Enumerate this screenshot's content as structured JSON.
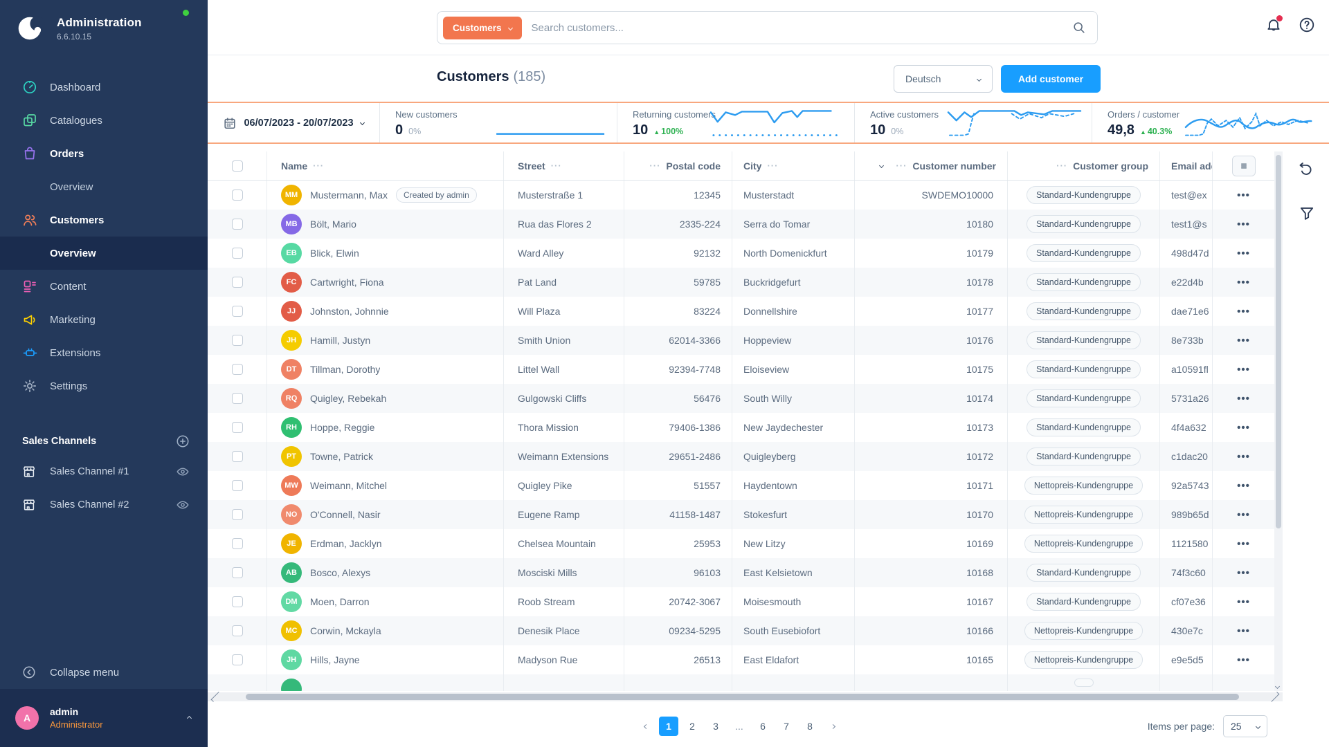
{
  "app": {
    "name": "Administration",
    "version": "6.6.10.15"
  },
  "sidebar": {
    "items": [
      {
        "label": "Dashboard",
        "icon": "dashboard-icon",
        "color": "#2dd5c4",
        "bold": false,
        "sub": []
      },
      {
        "label": "Catalogues",
        "icon": "catalogues-icon",
        "color": "#57d9a3",
        "bold": false,
        "sub": []
      },
      {
        "label": "Orders",
        "icon": "orders-icon",
        "color": "#9873f0",
        "bold": true,
        "sub": [
          {
            "label": "Overview",
            "active": false
          }
        ]
      },
      {
        "label": "Customers",
        "icon": "customers-icon",
        "color": "#f37f58",
        "bold": true,
        "sub": [
          {
            "label": "Overview",
            "active": true
          }
        ]
      },
      {
        "label": "Content",
        "icon": "content-icon",
        "color": "#ec5fb4",
        "bold": false,
        "sub": []
      },
      {
        "label": "Marketing",
        "icon": "marketing-icon",
        "color": "#ffd200",
        "bold": false,
        "sub": []
      },
      {
        "label": "Extensions",
        "icon": "extensions-icon",
        "color": "#1b9eff",
        "bold": false,
        "sub": []
      },
      {
        "label": "Settings",
        "icon": "settings-icon",
        "color": "#a4b2c5",
        "bold": false,
        "sub": []
      }
    ],
    "sales_channels": {
      "title": "Sales Channels",
      "channels": [
        "Sales Channel #1",
        "Sales Channel #2"
      ]
    },
    "collapse_label": "Collapse menu",
    "user": {
      "initial": "A",
      "name": "admin",
      "role": "Administrator"
    }
  },
  "topbar": {
    "scope_label": "Customers",
    "search_placeholder": "Search customers..."
  },
  "smartbar": {
    "title": "Customers",
    "count": "(185)",
    "language": "Deutsch",
    "add_button": "Add customer"
  },
  "stats": {
    "date_range": "06/07/2023 - 20/07/2023",
    "cards": [
      {
        "label": "New customers",
        "value": "0",
        "delta": "0%",
        "delta_type": "neutral"
      },
      {
        "label": "Returning customers",
        "value": "10",
        "delta": "100%",
        "delta_type": "up"
      },
      {
        "label": "Active customers",
        "value": "10",
        "delta": "0%",
        "delta_type": "neutral"
      },
      {
        "label": "Orders / customer",
        "value": "49,8",
        "delta": "40.3%",
        "delta_type": "up"
      }
    ],
    "accent_color": "#f8a77e",
    "spark_color": "#2d9cf0"
  },
  "table": {
    "columns": [
      "Name",
      "Street",
      "Postal code",
      "City",
      "Customer number",
      "Customer group",
      "Email address"
    ],
    "rows": [
      {
        "initials": "MM",
        "avatar_color": "#f0b400",
        "name": "Mustermann, Max",
        "badge": "Created by admin",
        "street": "Musterstraße 1",
        "postal": "12345",
        "city": "Musterstadt",
        "number": "SWDEMO10000",
        "group": "Standard-Kundengruppe",
        "email": "test@ex"
      },
      {
        "initials": "MB",
        "avatar_color": "#8569e6",
        "name": "Bölt, Mario",
        "badge": "",
        "street": "Rua das Flores 2",
        "postal": "2335-224",
        "city": "Serra do Tomar",
        "number": "10180",
        "group": "Standard-Kundengruppe",
        "email": "test1@s"
      },
      {
        "initials": "EB",
        "avatar_color": "#57d9a3",
        "name": "Blick, Elwin",
        "badge": "",
        "street": "Ward Alley",
        "postal": "92132",
        "city": "North Domenickfurt",
        "number": "10179",
        "group": "Standard-Kundengruppe",
        "email": "498d47d"
      },
      {
        "initials": "FC",
        "avatar_color": "#e25c47",
        "name": "Cartwright, Fiona",
        "badge": "",
        "street": "Pat Land",
        "postal": "59785",
        "city": "Buckridgefurt",
        "number": "10178",
        "group": "Standard-Kundengruppe",
        "email": "e22d4b"
      },
      {
        "initials": "JJ",
        "avatar_color": "#e25c47",
        "name": "Johnston, Johnnie",
        "badge": "",
        "street": "Will Plaza",
        "postal": "83224",
        "city": "Donnellshire",
        "number": "10177",
        "group": "Standard-Kundengruppe",
        "email": "dae71e6"
      },
      {
        "initials": "JH",
        "avatar_color": "#f5cc00",
        "name": "Hamill, Justyn",
        "badge": "",
        "street": "Smith Union",
        "postal": "62014-3366",
        "city": "Hoppeview",
        "number": "10176",
        "group": "Standard-Kundengruppe",
        "email": "8e733b"
      },
      {
        "initials": "DT",
        "avatar_color": "#ef8164",
        "name": "Tillman, Dorothy",
        "badge": "",
        "street": "Littel Wall",
        "postal": "92394-7748",
        "city": "Eloiseview",
        "number": "10175",
        "group": "Standard-Kundengruppe",
        "email": "a10591fl"
      },
      {
        "initials": "RQ",
        "avatar_color": "#ef8164",
        "name": "Quigley, Rebekah",
        "badge": "",
        "street": "Gulgowski Cliffs",
        "postal": "56476",
        "city": "South Willy",
        "number": "10174",
        "group": "Standard-Kundengruppe",
        "email": "5731a26"
      },
      {
        "initials": "RH",
        "avatar_color": "#2fbf71",
        "name": "Hoppe, Reggie",
        "badge": "",
        "street": "Thora Mission",
        "postal": "79406-1386",
        "city": "New Jaydechester",
        "number": "10173",
        "group": "Standard-Kundengruppe",
        "email": "4f4a632"
      },
      {
        "initials": "PT",
        "avatar_color": "#f0c400",
        "name": "Towne, Patrick",
        "badge": "",
        "street": "Weimann Extensions",
        "postal": "29651-2486",
        "city": "Quigleyberg",
        "number": "10172",
        "group": "Standard-Kundengruppe",
        "email": "c1dac20"
      },
      {
        "initials": "MW",
        "avatar_color": "#ee7a58",
        "name": "Weimann, Mitchel",
        "badge": "",
        "street": "Quigley Pike",
        "postal": "51557",
        "city": "Haydentown",
        "number": "10171",
        "group": "Nettopreis-Kundengruppe",
        "email": "92a5743"
      },
      {
        "initials": "NO",
        "avatar_color": "#f08a6d",
        "name": "O'Connell, Nasir",
        "badge": "",
        "street": "Eugene Ramp",
        "postal": "41158-1487",
        "city": "Stokesfurt",
        "number": "10170",
        "group": "Nettopreis-Kundengruppe",
        "email": "989b65d"
      },
      {
        "initials": "JE",
        "avatar_color": "#f0b400",
        "name": "Erdman, Jacklyn",
        "badge": "",
        "street": "Chelsea Mountain",
        "postal": "25953",
        "city": "New Litzy",
        "number": "10169",
        "group": "Nettopreis-Kundengruppe",
        "email": "1121580"
      },
      {
        "initials": "AB",
        "avatar_color": "#35b97a",
        "name": "Bosco, Alexys",
        "badge": "",
        "street": "Mosciski Mills",
        "postal": "96103",
        "city": "East Kelsietown",
        "number": "10168",
        "group": "Standard-Kundengruppe",
        "email": "74f3c60"
      },
      {
        "initials": "DM",
        "avatar_color": "#62d9a4",
        "name": "Moen, Darron",
        "badge": "",
        "street": "Roob Stream",
        "postal": "20742-3067",
        "city": "Moisesmouth",
        "number": "10167",
        "group": "Standard-Kundengruppe",
        "email": "cf07e36"
      },
      {
        "initials": "MC",
        "avatar_color": "#f0c000",
        "name": "Corwin, Mckayla",
        "badge": "",
        "street": "Denesik Place",
        "postal": "09234-5295",
        "city": "South Eusebiofort",
        "number": "10166",
        "group": "Nettopreis-Kundengruppe",
        "email": "430e7c"
      },
      {
        "initials": "JH",
        "avatar_color": "#5fd8a2",
        "name": "Hills, Jayne",
        "badge": "",
        "street": "Madyson Rue",
        "postal": "26513",
        "city": "East Eldafort",
        "number": "10165",
        "group": "Nettopreis-Kundengruppe",
        "email": "e9e5d5"
      }
    ],
    "partial_row_avatar_color": "#35b97a"
  },
  "pagination": {
    "pages": [
      "1",
      "2",
      "3",
      "...",
      "6",
      "7",
      "8"
    ],
    "active": "1",
    "items_per_page_label": "Items per page:",
    "items_per_page": "25"
  },
  "colors": {
    "accent_blue": "#189eff",
    "accent_orange": "#f2764e",
    "sidebar_bg": "#24395b",
    "delta_green": "#2db151",
    "notification_red": "#e52e50"
  }
}
